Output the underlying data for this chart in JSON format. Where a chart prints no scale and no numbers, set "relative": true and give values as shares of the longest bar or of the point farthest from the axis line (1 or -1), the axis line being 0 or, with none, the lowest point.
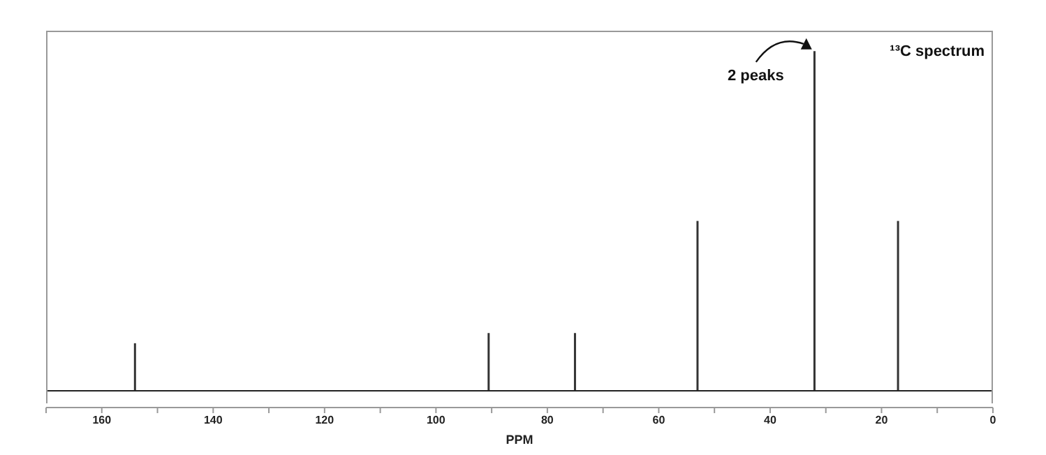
{
  "chart_data": {
    "type": "bar",
    "title": "¹³C spectrum",
    "xlabel": "PPM",
    "x": [
      154,
      90.5,
      75,
      53,
      32,
      17
    ],
    "values": [
      0.14,
      0.17,
      0.17,
      0.5,
      1,
      0.5
    ],
    "color": "#333333",
    "relative": true,
    "xlim": [
      170,
      0
    ],
    "xticks": [
      {
        "value": 170,
        "label": null
      },
      160,
      {
        "value": 150,
        "label": null
      },
      140,
      {
        "value": 130,
        "label": null
      },
      120,
      {
        "value": 110,
        "label": null
      },
      100,
      {
        "value": 90,
        "label": null
      },
      80,
      {
        "value": 70,
        "label": null
      },
      60,
      {
        "value": 50,
        "label": null
      },
      40,
      {
        "value": 30,
        "label": null
      },
      20,
      {
        "value": 10,
        "label": null
      },
      0
    ],
    "annotations": [
      {
        "text": "2 peaks",
        "x": 32,
        "y": 1
      }
    ],
    "grid": false,
    "legend": false
  }
}
